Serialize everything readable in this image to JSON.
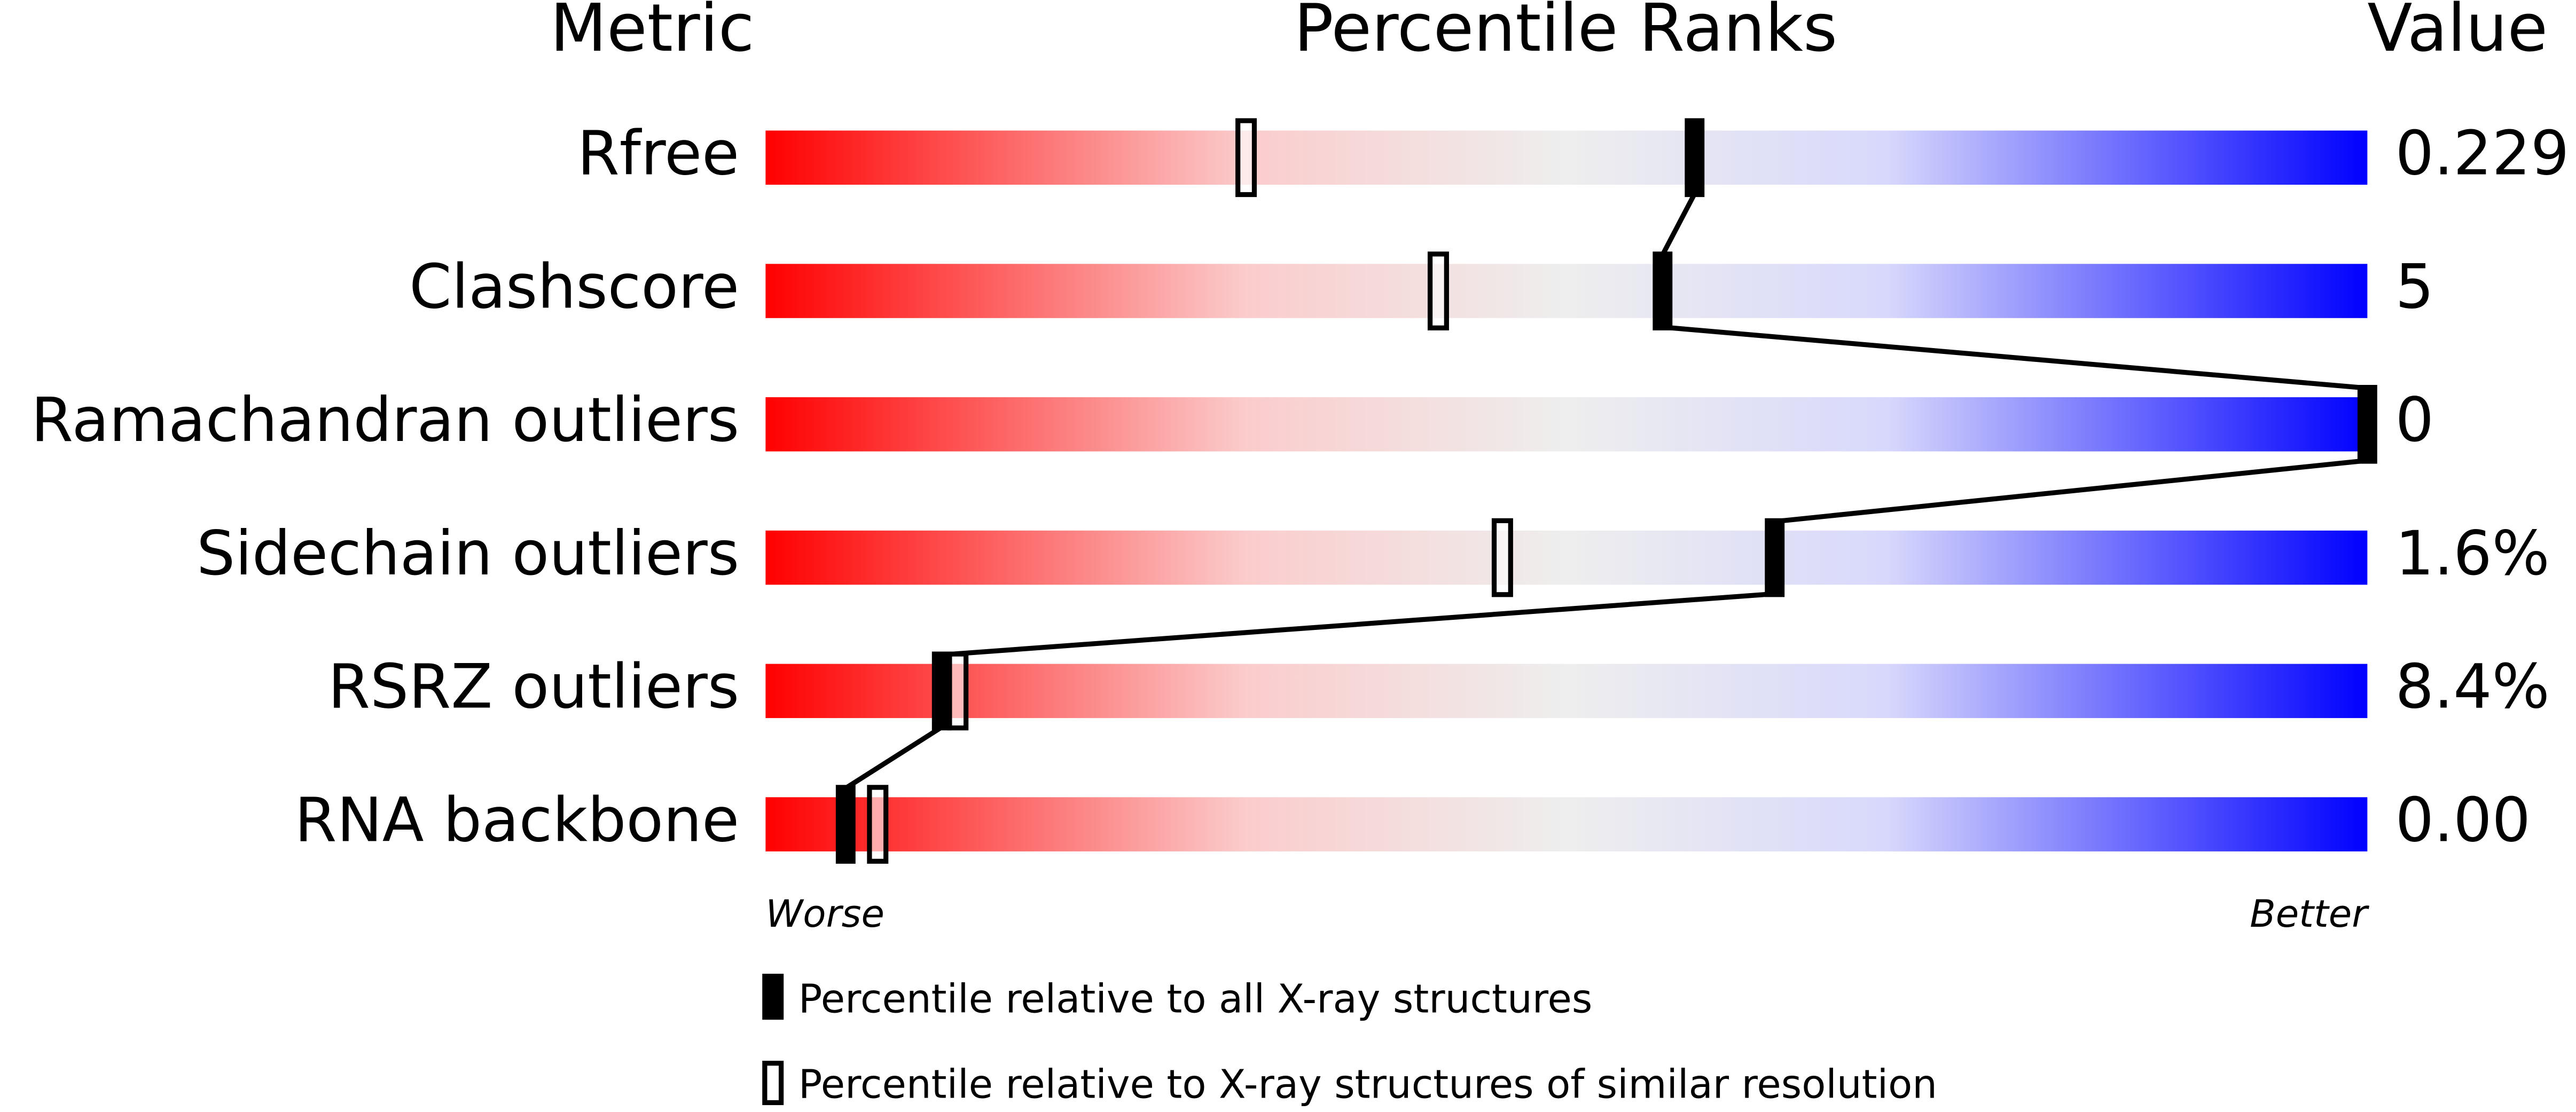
{
  "chart_data": {
    "type": "percentile-slider",
    "headers": [
      "Metric",
      "Percentile Ranks",
      "Value"
    ],
    "categories": [
      "Rfree",
      "Clashscore",
      "Ramachandran outliers",
      "Sidechain outliers",
      "RSRZ outliers",
      "RNA backbone"
    ],
    "metric_values": [
      "0.229",
      "5",
      "0",
      "1.6%",
      "8.4%",
      "0.00"
    ],
    "series": [
      {
        "name": "Percentile relative to all X-ray structures",
        "color": "#000000",
        "style": "filled",
        "values": [
          58,
          56,
          100,
          63,
          11,
          5
        ]
      },
      {
        "name": "Percentile relative to X-ray structures of similar resolution",
        "color": "#000000",
        "style": "open",
        "values": [
          30,
          42,
          null,
          46,
          12,
          7
        ]
      }
    ],
    "xlim": [
      0,
      100
    ],
    "axis_end_labels": [
      "Worse",
      "Better"
    ]
  }
}
